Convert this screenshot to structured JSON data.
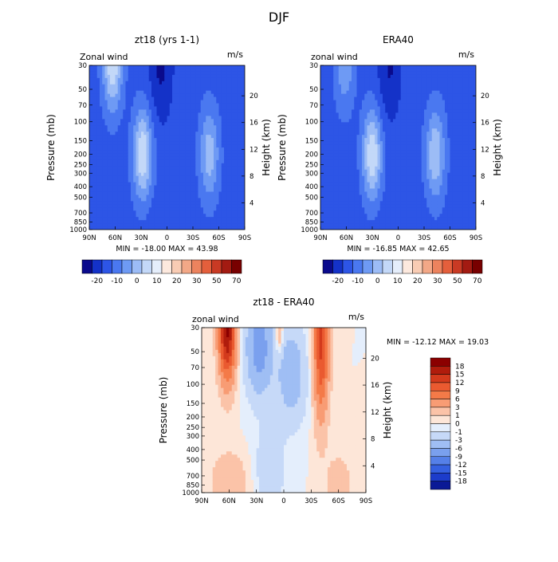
{
  "figure": {
    "title": "DJF"
  },
  "chart_data": [
    {
      "type": "heatmap",
      "title": "zt18 (yrs 1-1)",
      "corner_left": "Zonal wind",
      "corner_right": "m/s",
      "xlabel": "",
      "ylabel": "Pressure (mb)",
      "ylabel_right": "Height (km)",
      "x_ticks": [
        "90N",
        "60N",
        "30N",
        "0",
        "30S",
        "60S",
        "90S"
      ],
      "y_ticks": [
        "30",
        "50",
        "70",
        "100",
        "150",
        "200",
        "250",
        "300",
        "400",
        "500",
        "700",
        "850",
        "1000"
      ],
      "y_right_ticks": [
        "20",
        "16",
        "12",
        "8",
        "4"
      ],
      "stats": "MIN = -18.00   MAX = 43.98",
      "min": -18.0,
      "max": 43.98,
      "levels": [
        -20,
        -10,
        0,
        10,
        20,
        30,
        50,
        70
      ],
      "field": "full",
      "jets": [
        {
          "lat": 63,
          "p": 30,
          "value": 42
        },
        {
          "lat": 28,
          "p": 200,
          "value": 44
        },
        {
          "lat": -49,
          "p": 200,
          "value": 30
        }
      ],
      "easterly": {
        "lat": 7,
        "p": 30,
        "value": -18
      },
      "colorbar": {
        "labels": [
          "-20",
          "-10",
          "0",
          "10",
          "20",
          "30",
          "50",
          "70"
        ],
        "colors": [
          "#0a0a8c",
          "#1432c8",
          "#2d55e6",
          "#4a78f0",
          "#6e9af4",
          "#9cbcf6",
          "#c3d8f8",
          "#e5eefb",
          "#fde9de",
          "#f9ccb4",
          "#f3a887",
          "#ec835e",
          "#e45f3c",
          "#c93a24",
          "#a31b12",
          "#780000"
        ]
      }
    },
    {
      "type": "heatmap",
      "title": "ERA40",
      "corner_left": "zonal wind",
      "corner_right": "m/s",
      "xlabel": "",
      "ylabel": "Pressure (mb)",
      "ylabel_right": "Height (km)",
      "x_ticks": [
        "90N",
        "60N",
        "30N",
        "0",
        "30S",
        "60S",
        "90S"
      ],
      "y_ticks": [
        "30",
        "50",
        "70",
        "100",
        "150",
        "200",
        "250",
        "300",
        "400",
        "500",
        "700",
        "850",
        "1000"
      ],
      "y_right_ticks": [
        "20",
        "16",
        "12",
        "8",
        "4"
      ],
      "stats": "MIN = -16.85   MAX = 42.65",
      "min": -16.85,
      "max": 42.65,
      "levels": [
        -20,
        -10,
        0,
        10,
        20,
        30,
        50,
        70
      ],
      "field": "full",
      "jets": [
        {
          "lat": 62,
          "p": 30,
          "value": 22
        },
        {
          "lat": 30,
          "p": 200,
          "value": 43
        },
        {
          "lat": -43,
          "p": 200,
          "value": 34
        }
      ],
      "easterly": {
        "lat": 10,
        "p": 30,
        "value": -17
      },
      "colorbar": {
        "labels": [
          "-20",
          "-10",
          "0",
          "10",
          "20",
          "30",
          "50",
          "70"
        ],
        "colors": [
          "#0a0a8c",
          "#1432c8",
          "#2d55e6",
          "#4a78f0",
          "#6e9af4",
          "#9cbcf6",
          "#c3d8f8",
          "#e5eefb",
          "#fde9de",
          "#f9ccb4",
          "#f3a887",
          "#ec835e",
          "#e45f3c",
          "#c93a24",
          "#a31b12",
          "#780000"
        ]
      }
    },
    {
      "type": "heatmap",
      "title": "zt18 - ERA40",
      "corner_left": "zonal wind",
      "corner_right": "m/s",
      "xlabel": "",
      "ylabel": "Pressure (mb)",
      "ylabel_right": "Height (km)",
      "x_ticks": [
        "90N",
        "60N",
        "30N",
        "0",
        "30S",
        "60S",
        "90S"
      ],
      "y_ticks": [
        "30",
        "50",
        "70",
        "100",
        "150",
        "200",
        "250",
        "300",
        "400",
        "500",
        "700",
        "850",
        "1000"
      ],
      "y_right_ticks": [
        "20",
        "16",
        "12",
        "8",
        "4"
      ],
      "stats": "MIN = -12.12   MAX = 19.03",
      "min": -12.12,
      "max": 19.03,
      "levels": [
        -18,
        -15,
        -12,
        -9,
        -6,
        -3,
        -1,
        0,
        1,
        3,
        6,
        9,
        12,
        15,
        18
      ],
      "field": "diff",
      "colorbar": {
        "labels": [
          "18",
          "15",
          "12",
          "9",
          "6",
          "3",
          "1",
          "0",
          "-1",
          "-3",
          "-6",
          "-9",
          "-12",
          "-15",
          "-18"
        ],
        "colors": [
          "#8b0000",
          "#b01c0c",
          "#d33a1c",
          "#ea5a30",
          "#f47a48",
          "#f89c74",
          "#fbc3a8",
          "#fde6d8",
          "#e4eefc",
          "#c6d9f8",
          "#9fbef4",
          "#7aa0ee",
          "#5580e8",
          "#3560e0",
          "#1c3ccb",
          "#0a1a96"
        ]
      }
    }
  ]
}
